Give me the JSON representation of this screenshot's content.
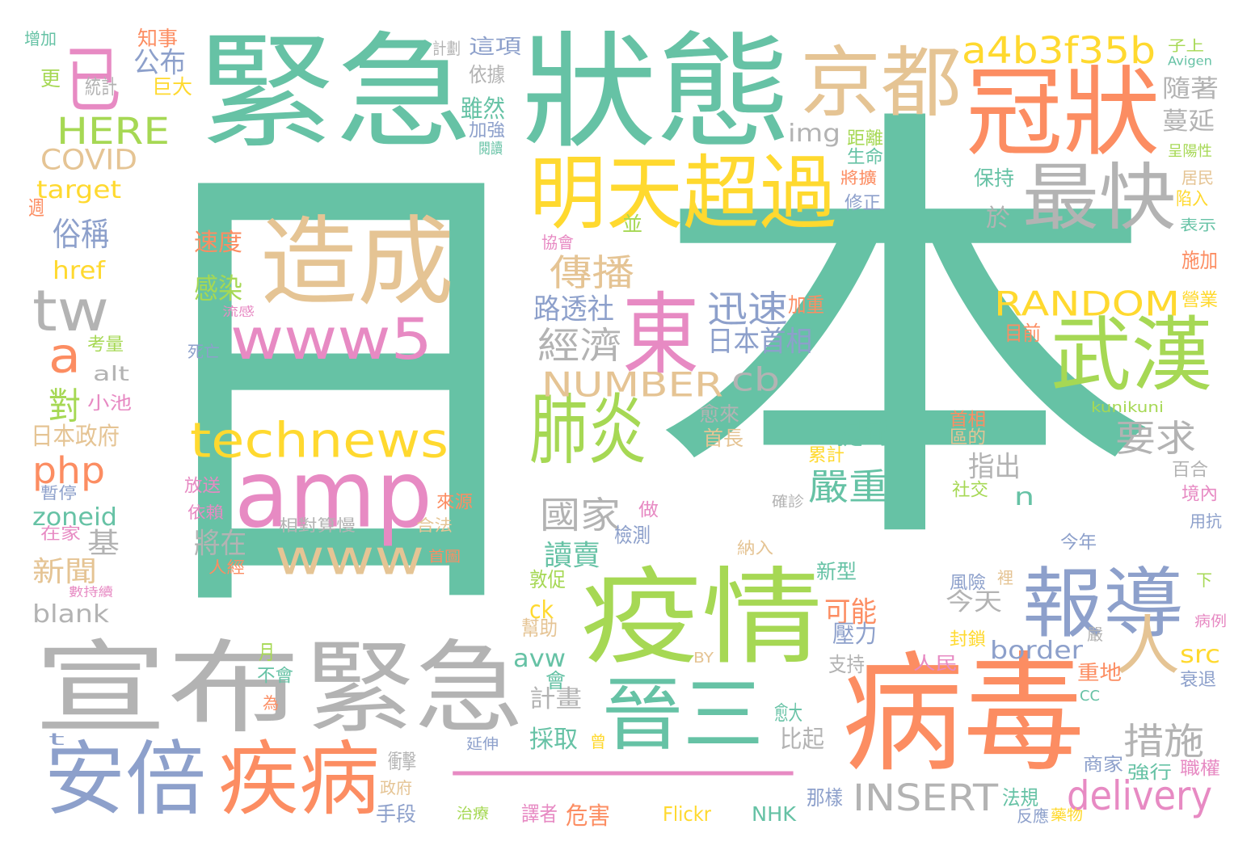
{
  "palette": {
    "green": "#66c2a5",
    "orange": "#fc8d62",
    "blue": "#8da0cb",
    "pink": "#e78ac3",
    "lime": "#a6d854",
    "yellow": "#ffd92f",
    "tan": "#e5c494",
    "gray": "#b3b3b3"
  },
  "words": [
    {
      "text": "日",
      "color": "green"
    },
    {
      "text": "本",
      "color": "green"
    },
    {
      "text": "一",
      "color": "pink"
    },
    {
      "text": "緊急",
      "color": "green"
    },
    {
      "text": "狀態",
      "color": "green"
    },
    {
      "text": "宣布",
      "color": "gray"
    },
    {
      "text": "緊急",
      "color": "gray"
    },
    {
      "text": "疫情",
      "color": "lime"
    },
    {
      "text": "病毒",
      "color": "orange"
    },
    {
      "text": "冠狀",
      "color": "orange"
    },
    {
      "text": "造成",
      "color": "tan"
    },
    {
      "text": "amp",
      "color": "pink"
    },
    {
      "text": "明天超過",
      "color": "yellow"
    },
    {
      "text": "京都",
      "color": "tan"
    },
    {
      "text": "東",
      "color": "pink"
    },
    {
      "text": "肺炎",
      "color": "lime"
    },
    {
      "text": "武漢",
      "color": "lime"
    },
    {
      "text": "報導",
      "color": "blue"
    },
    {
      "text": "安倍",
      "color": "blue"
    },
    {
      "text": "疾病",
      "color": "orange"
    },
    {
      "text": "晉三",
      "color": "green"
    },
    {
      "text": "最快",
      "color": "gray"
    },
    {
      "text": "已",
      "color": "pink"
    },
    {
      "text": "www5",
      "color": "pink"
    },
    {
      "text": "technews",
      "color": "yellow"
    },
    {
      "text": "www",
      "color": "tan"
    },
    {
      "text": "tw",
      "color": "gray"
    },
    {
      "text": "人",
      "color": "tan"
    },
    {
      "text": "a",
      "color": "orange"
    },
    {
      "text": "a4b3f35b",
      "color": "yellow"
    },
    {
      "text": "RANDOM",
      "color": "yellow"
    },
    {
      "text": "NUMBER",
      "color": "tan"
    },
    {
      "text": "INSERT",
      "color": "gray"
    },
    {
      "text": "delivery",
      "color": "pink"
    },
    {
      "text": "HERE",
      "color": "lime"
    },
    {
      "text": "COVID",
      "color": "tan"
    },
    {
      "text": "target",
      "color": "yellow"
    },
    {
      "text": "傳播",
      "color": "tan"
    },
    {
      "text": "迅速",
      "color": "blue"
    },
    {
      "text": "經濟",
      "color": "gray"
    },
    {
      "text": "cb",
      "color": "gray"
    },
    {
      "text": "措施",
      "color": "gray"
    },
    {
      "text": "要求",
      "color": "gray"
    },
    {
      "text": "嚴重",
      "color": "green"
    },
    {
      "text": "國家",
      "color": "gray"
    },
    {
      "text": "php",
      "color": "orange"
    },
    {
      "text": "對",
      "color": "lime"
    },
    {
      "text": "俗稱",
      "color": "blue"
    },
    {
      "text": "公布",
      "color": "blue"
    },
    {
      "text": "href",
      "color": "yellow"
    },
    {
      "text": "zoneid",
      "color": "green"
    },
    {
      "text": "alt",
      "color": "gray"
    },
    {
      "text": "日本政府",
      "color": "tan"
    },
    {
      "text": "基",
      "color": "gray"
    },
    {
      "text": "新聞",
      "color": "tan"
    },
    {
      "text": "blank",
      "color": "gray"
    },
    {
      "text": "路透社",
      "color": "blue"
    },
    {
      "text": "日本首相",
      "color": "blue"
    },
    {
      "text": "感染",
      "color": "lime"
    },
    {
      "text": "速度",
      "color": "orange"
    },
    {
      "text": "將在",
      "color": "gray"
    },
    {
      "text": "讀賣",
      "color": "green"
    },
    {
      "text": "提到",
      "color": "green"
    },
    {
      "text": "指出",
      "color": "gray"
    },
    {
      "text": "n",
      "color": "green"
    },
    {
      "text": "可能",
      "color": "orange"
    },
    {
      "text": "今天",
      "color": "gray"
    },
    {
      "text": "border",
      "color": "blue"
    },
    {
      "text": "src",
      "color": "yellow"
    },
    {
      "text": "avw",
      "color": "green"
    },
    {
      "text": "ck",
      "color": "yellow"
    },
    {
      "text": "img",
      "color": "gray"
    },
    {
      "text": "於",
      "color": "gray"
    },
    {
      "text": "隨著",
      "color": "gray"
    },
    {
      "text": "蔓延",
      "color": "gray"
    },
    {
      "text": "雖然",
      "color": "green"
    },
    {
      "text": "這項",
      "color": "blue"
    },
    {
      "text": "依據",
      "color": "gray"
    },
    {
      "text": "巨大",
      "color": "yellow"
    },
    {
      "text": "知事",
      "color": "orange"
    },
    {
      "text": "統計",
      "color": "gray"
    },
    {
      "text": "更",
      "color": "lime"
    },
    {
      "text": "增加",
      "color": "green"
    },
    {
      "text": "保持",
      "color": "green"
    },
    {
      "text": "比起",
      "color": "gray"
    },
    {
      "text": "採取",
      "color": "green"
    },
    {
      "text": "計畫",
      "color": "gray"
    },
    {
      "text": "會",
      "color": "green"
    },
    {
      "text": "壓力",
      "color": "blue"
    },
    {
      "text": "新型",
      "color": "green"
    },
    {
      "text": "愈大",
      "color": "green"
    },
    {
      "text": "累計",
      "color": "yellow"
    },
    {
      "text": "首相",
      "color": "orange"
    },
    {
      "text": "區的",
      "color": "tan"
    },
    {
      "text": "社交",
      "color": "lime"
    },
    {
      "text": "愈來",
      "color": "gray"
    },
    {
      "text": "首長",
      "color": "tan"
    },
    {
      "text": "檢測",
      "color": "blue"
    },
    {
      "text": "敦促",
      "color": "lime"
    },
    {
      "text": "幫助",
      "color": "tan"
    },
    {
      "text": "衝擊",
      "color": "gray"
    },
    {
      "text": "政府",
      "color": "tan"
    },
    {
      "text": "手段",
      "color": "blue"
    },
    {
      "text": "譯者",
      "color": "pink"
    },
    {
      "text": "危害",
      "color": "orange"
    },
    {
      "text": "Flickr",
      "color": "yellow"
    },
    {
      "text": "NHK",
      "color": "green"
    },
    {
      "text": "那樣",
      "color": "blue"
    },
    {
      "text": "法規",
      "color": "green"
    },
    {
      "text": "反應",
      "color": "blue"
    },
    {
      "text": "強行",
      "color": "green"
    },
    {
      "text": "商家",
      "color": "blue"
    },
    {
      "text": "職權",
      "color": "pink"
    },
    {
      "text": "衰退",
      "color": "blue"
    },
    {
      "text": "封鎖",
      "color": "yellow"
    },
    {
      "text": "人民",
      "color": "pink"
    },
    {
      "text": "重地",
      "color": "orange"
    },
    {
      "text": "支持",
      "color": "gray"
    },
    {
      "text": "風險",
      "color": "blue"
    },
    {
      "text": "今年",
      "color": "blue"
    },
    {
      "text": "目前",
      "color": "orange"
    },
    {
      "text": "加重",
      "color": "orange"
    },
    {
      "text": "境內",
      "color": "pink"
    },
    {
      "text": "百合",
      "color": "gray"
    },
    {
      "text": "施加",
      "color": "orange"
    },
    {
      "text": "營業",
      "color": "yellow"
    },
    {
      "text": "表示",
      "color": "green"
    },
    {
      "text": "陷入",
      "color": "yellow"
    },
    {
      "text": "居民",
      "color": "tan"
    },
    {
      "text": "呈陽性",
      "color": "lime"
    },
    {
      "text": "子上",
      "color": "lime"
    },
    {
      "text": "Avigen",
      "color": "green"
    },
    {
      "text": "距離",
      "color": "lime"
    },
    {
      "text": "生命",
      "color": "green"
    },
    {
      "text": "將擴",
      "color": "orange"
    },
    {
      "text": "修正",
      "color": "blue"
    },
    {
      "text": "加強",
      "color": "blue"
    },
    {
      "text": "閱讀",
      "color": "green"
    },
    {
      "text": "計劃",
      "color": "gray"
    },
    {
      "text": "協會",
      "color": "pink"
    },
    {
      "text": "並",
      "color": "lime"
    },
    {
      "text": "流感",
      "color": "pink"
    },
    {
      "text": "死亡",
      "color": "blue"
    },
    {
      "text": "考量",
      "color": "lime"
    },
    {
      "text": "小池",
      "color": "pink"
    },
    {
      "text": "暫停",
      "color": "blue"
    },
    {
      "text": "在家",
      "color": "pink"
    },
    {
      "text": "數持續",
      "color": "pink"
    },
    {
      "text": "週",
      "color": "orange"
    },
    {
      "text": "月",
      "color": "lime"
    },
    {
      "text": "不會",
      "color": "green"
    },
    {
      "text": "為",
      "color": "orange"
    },
    {
      "text": "t",
      "color": "blue"
    },
    {
      "text": "放送",
      "color": "pink"
    },
    {
      "text": "依賴",
      "color": "pink"
    },
    {
      "text": "人經",
      "color": "orange"
    },
    {
      "text": "相對算慢",
      "color": "gray"
    },
    {
      "text": "來源",
      "color": "orange"
    },
    {
      "text": "合法",
      "color": "tan"
    },
    {
      "text": "首圖",
      "color": "orange"
    },
    {
      "text": "做",
      "color": "pink"
    },
    {
      "text": "確診",
      "color": "gray"
    },
    {
      "text": "納入",
      "color": "tan"
    },
    {
      "text": "延伸",
      "color": "blue"
    },
    {
      "text": "治療",
      "color": "lime"
    },
    {
      "text": "曾",
      "color": "yellow"
    },
    {
      "text": "BY",
      "color": "tan"
    },
    {
      "text": "CC",
      "color": "green"
    },
    {
      "text": "裡",
      "color": "tan"
    },
    {
      "text": "下",
      "color": "lime"
    },
    {
      "text": "病例",
      "color": "pink"
    },
    {
      "text": "嚴",
      "color": "gray"
    },
    {
      "text": "藥物",
      "color": "yellow"
    },
    {
      "text": "kunikuni",
      "color": "lime"
    },
    {
      "text": "用抗",
      "color": "blue"
    }
  ]
}
